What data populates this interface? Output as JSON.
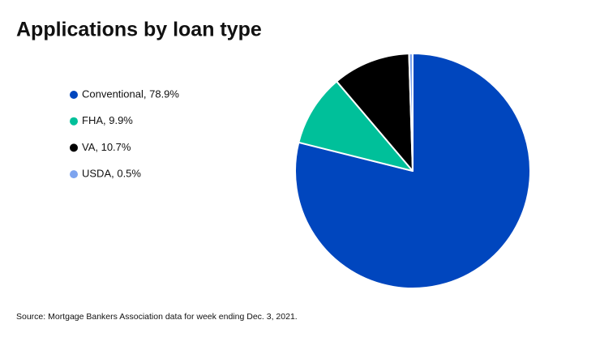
{
  "chart_data": {
    "type": "pie",
    "title": "Applications by loan type",
    "source": "Source: Mortgage Bankers Association data for week ending Dec. 3, 2021.",
    "categories": [
      "Conventional, 78.9%",
      "FHA, 9.9%",
      "VA, 10.7%",
      "USDA, 0.5%"
    ],
    "values": [
      78.9,
      9.9,
      10.7,
      0.5
    ],
    "colors": [
      "#0046be",
      "#00c09a",
      "#000000",
      "#7da4ef"
    ]
  }
}
